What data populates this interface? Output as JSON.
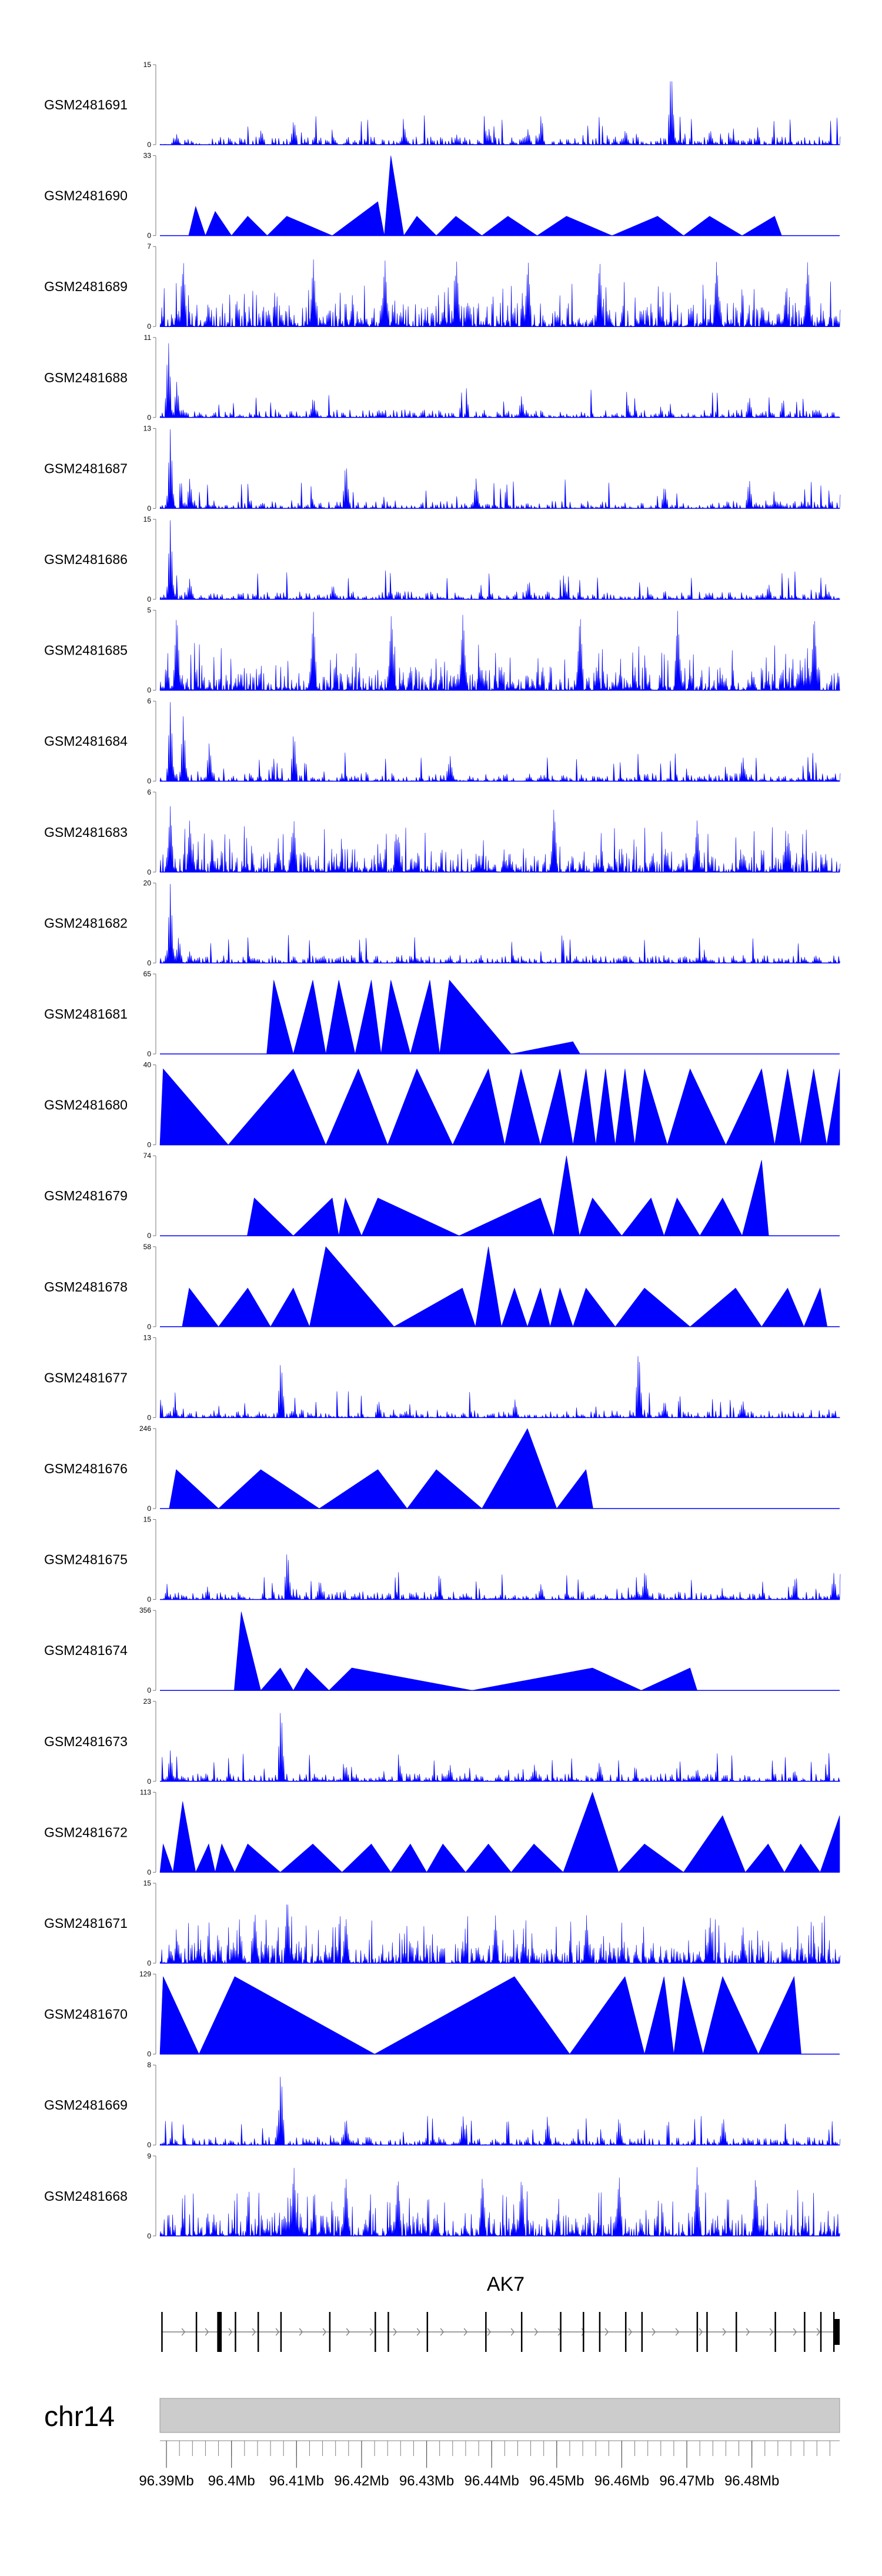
{
  "chart_data": {
    "type": "area",
    "title": "",
    "x_unit": "Mb",
    "xlim": [
      96.389,
      96.4935
    ],
    "signal_color": "#0000ff",
    "tracks": [
      {
        "name": "GSM2481691",
        "ymax": 15,
        "ymin": 0,
        "profile": "noise",
        "peaks": [
          [
            96.3915,
            2
          ],
          [
            96.4045,
            3
          ],
          [
            96.4095,
            5
          ],
          [
            96.4265,
            3
          ],
          [
            96.4345,
            2
          ],
          [
            96.4395,
            3
          ],
          [
            96.4455,
            3
          ],
          [
            96.4605,
            3
          ],
          [
            96.4675,
            15
          ],
          [
            96.4735,
            3
          ]
        ]
      },
      {
        "name": "GSM2481690",
        "ymax": 33,
        "ymin": 0,
        "profile": "blocks",
        "peaks": [
          [
            96.3945,
            12
          ],
          [
            96.3975,
            10
          ],
          [
            96.4025,
            8
          ],
          [
            96.4085,
            8
          ],
          [
            96.4225,
            14
          ],
          [
            96.4245,
            33
          ],
          [
            96.4285,
            8
          ],
          [
            96.4345,
            8
          ],
          [
            96.4425,
            8
          ],
          [
            96.4515,
            8
          ],
          [
            96.4655,
            8
          ],
          [
            96.4735,
            8
          ],
          [
            96.4835,
            8
          ]
        ]
      },
      {
        "name": "GSM2481689",
        "ymax": 7,
        "ymin": 0,
        "profile": "dense",
        "peaks": [
          [
            96.3925,
            6
          ],
          [
            96.4125,
            6
          ],
          [
            96.4235,
            6
          ],
          [
            96.4345,
            6
          ],
          [
            96.4455,
            6
          ],
          [
            96.4565,
            6
          ],
          [
            96.4745,
            6
          ],
          [
            96.4885,
            6
          ]
        ]
      },
      {
        "name": "GSM2481688",
        "ymax": 11,
        "ymin": 0,
        "profile": "noise",
        "peaks": [
          [
            96.3902,
            11
          ],
          [
            96.3915,
            5
          ],
          [
            96.4125,
            3
          ],
          [
            96.4445,
            3
          ],
          [
            96.4795,
            3
          ]
        ]
      },
      {
        "name": "GSM2481687",
        "ymax": 13,
        "ymin": 0,
        "profile": "noise",
        "peaks": [
          [
            96.3905,
            13
          ],
          [
            96.3935,
            5
          ],
          [
            96.4175,
            8
          ],
          [
            96.4375,
            5
          ],
          [
            96.4665,
            4
          ],
          [
            96.4795,
            5
          ]
        ]
      },
      {
        "name": "GSM2481686",
        "ymax": 15,
        "ymin": 0,
        "profile": "noise",
        "peaks": [
          [
            96.3905,
            15
          ],
          [
            96.3935,
            4
          ],
          [
            96.4155,
            3
          ],
          [
            96.4455,
            3
          ],
          [
            96.4825,
            3
          ]
        ]
      },
      {
        "name": "GSM2481685",
        "ymax": 5,
        "ymin": 0,
        "profile": "dense",
        "peaks": [
          [
            96.3915,
            5
          ],
          [
            96.4125,
            5
          ],
          [
            96.4245,
            5
          ],
          [
            96.4355,
            5
          ],
          [
            96.4535,
            5
          ],
          [
            96.4685,
            5
          ],
          [
            96.4895,
            5
          ]
        ]
      },
      {
        "name": "GSM2481684",
        "ymax": 6,
        "ymin": 0,
        "profile": "noise",
        "peaks": [
          [
            96.3905,
            6
          ],
          [
            96.3925,
            5
          ],
          [
            96.3965,
            3
          ],
          [
            96.4095,
            4
          ],
          [
            96.4335,
            2
          ],
          [
            96.4785,
            2
          ]
        ]
      },
      {
        "name": "GSM2481683",
        "ymax": 6,
        "ymin": 0,
        "profile": "dense",
        "peaks": [
          [
            96.3905,
            5
          ],
          [
            96.3935,
            4
          ],
          [
            96.4095,
            4
          ],
          [
            96.4255,
            3
          ],
          [
            96.4495,
            5
          ],
          [
            96.4715,
            4
          ],
          [
            96.4855,
            3
          ]
        ]
      },
      {
        "name": "GSM2481682",
        "ymax": 20,
        "ymin": 0,
        "profile": "noise",
        "peaks": [
          [
            96.3905,
            20
          ],
          [
            96.3918,
            7
          ],
          [
            96.3935,
            3
          ],
          [
            96.4095,
            2
          ],
          [
            96.4335,
            2
          ],
          [
            96.4725,
            2
          ]
        ]
      },
      {
        "name": "GSM2481681",
        "ymax": 65,
        "ymin": 0,
        "profile": "blocks",
        "peaks": [
          [
            96.4065,
            60
          ],
          [
            96.4125,
            60
          ],
          [
            96.4165,
            60
          ],
          [
            96.4215,
            60
          ],
          [
            96.4245,
            60
          ],
          [
            96.4305,
            60
          ],
          [
            96.4335,
            60
          ],
          [
            96.4525,
            10
          ]
        ]
      },
      {
        "name": "GSM2481680",
        "ymax": 40,
        "ymin": 0,
        "profile": "blocks",
        "peaks": [
          [
            96.3895,
            38
          ],
          [
            96.4095,
            38
          ],
          [
            96.4195,
            38
          ],
          [
            96.4285,
            38
          ],
          [
            96.4395,
            38
          ],
          [
            96.4445,
            38
          ],
          [
            96.4505,
            38
          ],
          [
            96.4545,
            38
          ],
          [
            96.4575,
            38
          ],
          [
            96.4605,
            38
          ],
          [
            96.4635,
            38
          ],
          [
            96.4705,
            38
          ],
          [
            96.4815,
            38
          ],
          [
            96.4855,
            38
          ],
          [
            96.4895,
            38
          ],
          [
            96.4935,
            38
          ]
        ]
      },
      {
        "name": "GSM2481679",
        "ymax": 74,
        "ymin": 0,
        "profile": "blocks",
        "peaks": [
          [
            96.4035,
            35
          ],
          [
            96.4155,
            35
          ],
          [
            96.4175,
            35
          ],
          [
            96.4225,
            35
          ],
          [
            96.4475,
            35
          ],
          [
            96.4515,
            74
          ],
          [
            96.4555,
            35
          ],
          [
            96.4645,
            35
          ],
          [
            96.4685,
            35
          ],
          [
            96.4755,
            35
          ],
          [
            96.4815,
            70
          ]
        ]
      },
      {
        "name": "GSM2481678",
        "ymax": 58,
        "ymin": 0,
        "profile": "blocks",
        "peaks": [
          [
            96.3935,
            28
          ],
          [
            96.4025,
            28
          ],
          [
            96.4095,
            28
          ],
          [
            96.4145,
            58
          ],
          [
            96.4355,
            28
          ],
          [
            96.4395,
            58
          ],
          [
            96.4435,
            28
          ],
          [
            96.4475,
            28
          ],
          [
            96.4505,
            28
          ],
          [
            96.4545,
            28
          ],
          [
            96.4635,
            28
          ],
          [
            96.4775,
            28
          ],
          [
            96.4855,
            28
          ],
          [
            96.4905,
            28
          ]
        ]
      },
      {
        "name": "GSM2481677",
        "ymax": 13,
        "ymin": 0,
        "profile": "noise",
        "peaks": [
          [
            96.4075,
            10
          ],
          [
            96.4225,
            3
          ],
          [
            96.4435,
            3
          ],
          [
            96.4625,
            12
          ],
          [
            96.4665,
            3
          ],
          [
            96.4785,
            3
          ]
        ]
      },
      {
        "name": "GSM2481676",
        "ymax": 246,
        "ymin": 0,
        "profile": "blocks",
        "peaks": [
          [
            96.3915,
            120
          ],
          [
            96.4045,
            120
          ],
          [
            96.4225,
            120
          ],
          [
            96.4315,
            120
          ],
          [
            96.4455,
            246
          ],
          [
            96.4545,
            120
          ]
        ]
      },
      {
        "name": "GSM2481675",
        "ymax": 15,
        "ymin": 0,
        "profile": "noise",
        "peaks": [
          [
            96.4085,
            10
          ],
          [
            96.4135,
            4
          ],
          [
            96.4475,
            3
          ],
          [
            96.4635,
            6
          ],
          [
            96.4865,
            4
          ],
          [
            96.4925,
            5
          ]
        ]
      },
      {
        "name": "GSM2481674",
        "ymax": 356,
        "ymin": 0,
        "profile": "blocks",
        "peaks": [
          [
            96.4015,
            350
          ],
          [
            96.4075,
            100
          ],
          [
            96.4115,
            100
          ],
          [
            96.4185,
            100
          ],
          [
            96.4555,
            100
          ],
          [
            96.4705,
            100
          ]
        ]
      },
      {
        "name": "GSM2481673",
        "ymax": 23,
        "ymin": 0,
        "profile": "noise",
        "peaks": [
          [
            96.3905,
            9
          ],
          [
            96.4075,
            23
          ],
          [
            96.4175,
            5
          ],
          [
            96.4335,
            5
          ],
          [
            96.4465,
            5
          ],
          [
            96.4565,
            6
          ],
          [
            96.4715,
            4
          ]
        ]
      },
      {
        "name": "GSM2481672",
        "ymax": 113,
        "ymin": 0,
        "profile": "blocks",
        "peaks": [
          [
            96.3895,
            40
          ],
          [
            96.3925,
            100
          ],
          [
            96.3965,
            40
          ],
          [
            96.3985,
            40
          ],
          [
            96.4025,
            40
          ],
          [
            96.4125,
            40
          ],
          [
            96.4215,
            40
          ],
          [
            96.4275,
            40
          ],
          [
            96.4325,
            40
          ],
          [
            96.4395,
            40
          ],
          [
            96.4465,
            40
          ],
          [
            96.4555,
            113
          ],
          [
            96.4635,
            40
          ],
          [
            96.4755,
            80
          ],
          [
            96.4825,
            40
          ],
          [
            96.4875,
            40
          ],
          [
            96.4935,
            80
          ]
        ]
      },
      {
        "name": "GSM2481671",
        "ymax": 15,
        "ymin": 0,
        "profile": "dense",
        "peaks": [
          [
            96.4035,
            10
          ],
          [
            96.4085,
            13
          ],
          [
            96.4175,
            9
          ],
          [
            96.4405,
            9
          ],
          [
            96.4545,
            9
          ],
          [
            96.4735,
            9
          ]
        ]
      },
      {
        "name": "GSM2481670",
        "ymax": 129,
        "ymin": 0,
        "profile": "blocks",
        "peaks": [
          [
            96.3895,
            125
          ],
          [
            96.4005,
            125
          ],
          [
            96.4435,
            125
          ],
          [
            96.4605,
            125
          ],
          [
            96.4665,
            125
          ],
          [
            96.4695,
            125
          ],
          [
            96.4755,
            125
          ],
          [
            96.4865,
            125
          ]
        ]
      },
      {
        "name": "GSM2481669",
        "ymax": 8,
        "ymin": 0,
        "profile": "noise",
        "peaks": [
          [
            96.4075,
            8
          ],
          [
            96.4175,
            3
          ],
          [
            96.4355,
            3
          ],
          [
            96.4485,
            3
          ],
          [
            96.4595,
            3
          ],
          [
            96.4755,
            3
          ]
        ]
      },
      {
        "name": "GSM2481668",
        "ymax": 9,
        "ymin": 0,
        "profile": "dense",
        "peaks": [
          [
            96.4095,
            8
          ],
          [
            96.4175,
            7
          ],
          [
            96.4255,
            7
          ],
          [
            96.4385,
            7
          ],
          [
            96.4445,
            7
          ],
          [
            96.4595,
            7
          ],
          [
            96.4715,
            8
          ],
          [
            96.4805,
            7
          ]
        ]
      }
    ],
    "gene": {
      "name": "AK7",
      "strand": "+",
      "start": 96.3892,
      "end": 96.4935,
      "exons": [
        [
          96.3892,
          96.3894
        ],
        [
          96.3945,
          96.3946
        ],
        [
          96.3978,
          96.3979
        ],
        [
          96.398,
          96.3985
        ],
        [
          96.4005,
          96.4006
        ],
        [
          96.404,
          96.4041
        ],
        [
          96.4075,
          96.4076
        ],
        [
          96.415,
          96.4151
        ],
        [
          96.422,
          96.4221
        ],
        [
          96.424,
          96.4241
        ],
        [
          96.43,
          96.4301
        ],
        [
          96.439,
          96.4391
        ],
        [
          96.4445,
          96.4446
        ],
        [
          96.4505,
          96.4506
        ],
        [
          96.454,
          96.4541
        ],
        [
          96.4565,
          96.4566
        ],
        [
          96.4605,
          96.4606
        ],
        [
          96.463,
          96.4631
        ],
        [
          96.4715,
          96.4716
        ],
        [
          96.473,
          96.4731
        ],
        [
          96.4775,
          96.4776
        ],
        [
          96.4835,
          96.4836
        ],
        [
          96.488,
          96.4881
        ],
        [
          96.4905,
          96.4906
        ],
        [
          96.4925,
          96.4926
        ],
        [
          96.4927,
          96.4935
        ]
      ]
    },
    "chromosome": "chr14",
    "x_ticks": [
      96.39,
      96.4,
      96.41,
      96.42,
      96.43,
      96.44,
      96.45,
      96.46,
      96.47,
      96.48
    ],
    "x_tick_labels": [
      "96.39Mb",
      "96.4Mb",
      "96.41Mb",
      "96.42Mb",
      "96.43Mb",
      "96.44Mb",
      "96.45Mb",
      "96.46Mb",
      "96.47Mb",
      "96.48Mb"
    ]
  }
}
